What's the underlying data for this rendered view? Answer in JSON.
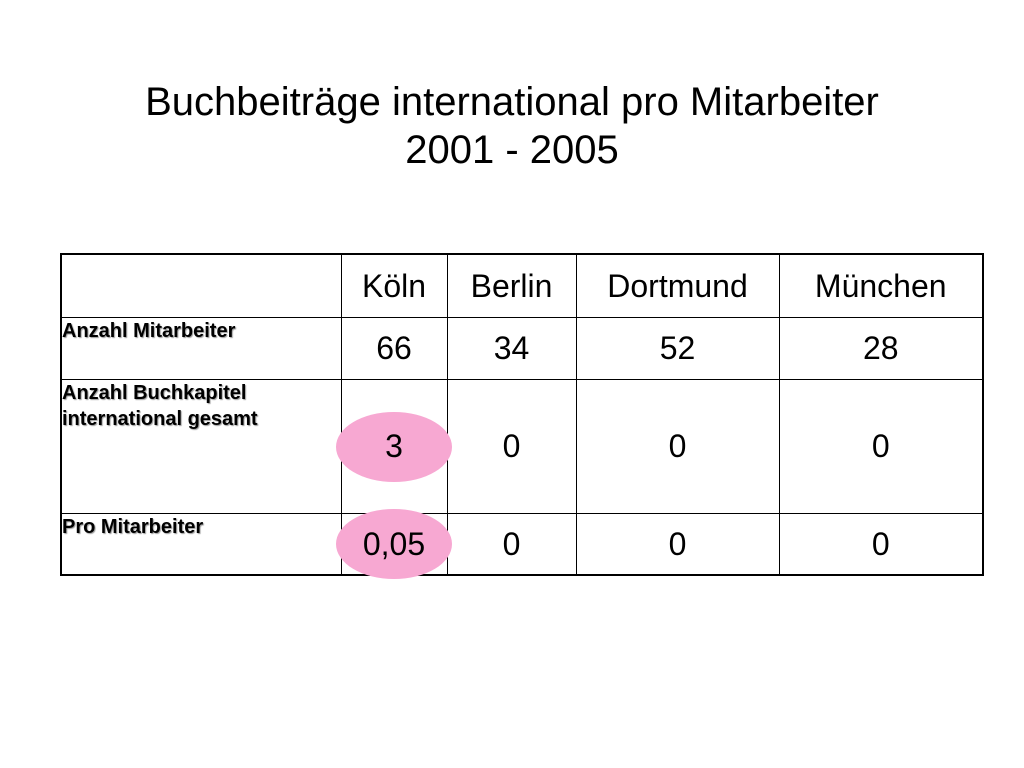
{
  "title": {
    "line1": "Buchbeiträge international pro Mitarbeiter",
    "line2": "2001 - 2005"
  },
  "table": {
    "columns": [
      "",
      "Köln",
      "Berlin",
      "Dortmund",
      "München"
    ],
    "rows": [
      {
        "label": "Anzahl Mitarbeiter",
        "values": [
          "66",
          "34",
          "52",
          "28"
        ]
      },
      {
        "label": "Anzahl Buchkapitel international gesamt",
        "values": [
          "3",
          "0",
          "0",
          "0"
        ]
      },
      {
        "label": "Pro Mitarbeiter",
        "values": [
          "0,05",
          "0",
          "0",
          "0"
        ]
      }
    ],
    "highlight_color": "#f7a8d2"
  }
}
